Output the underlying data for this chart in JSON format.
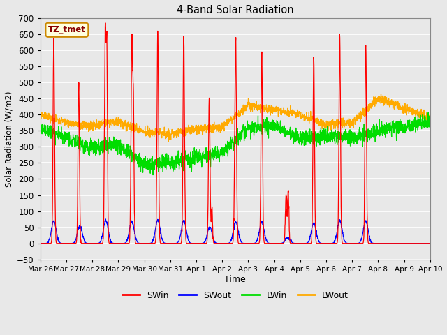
{
  "title": "4-Band Solar Radiation",
  "xlabel": "Time",
  "ylabel": "Solar Radiation (W/m2)",
  "ylim": [
    -50,
    700
  ],
  "plot_bg_color": "#e8e8e8",
  "grid_color": "#ffffff",
  "label_box": "TZ_tmet",
  "label_box_bg": "#ffffdd",
  "label_box_border": "#cc8800",
  "colors": {
    "SWin": "#ff0000",
    "SWout": "#0000ff",
    "LWin": "#00dd00",
    "LWout": "#ffaa00"
  },
  "tick_labels": [
    "Mar 26",
    "Mar 27",
    "Mar 28",
    "Mar 29",
    "Mar 30",
    "Mar 31",
    "Apr 1",
    "Apr 2",
    "Apr 3",
    "Apr 4",
    "Apr 5",
    "Apr 6",
    "Apr 7",
    "Apr 8",
    "Apr 9",
    "Apr 10"
  ],
  "legend_labels": [
    "SWin",
    "SWout",
    "LWin",
    "LWout"
  ]
}
